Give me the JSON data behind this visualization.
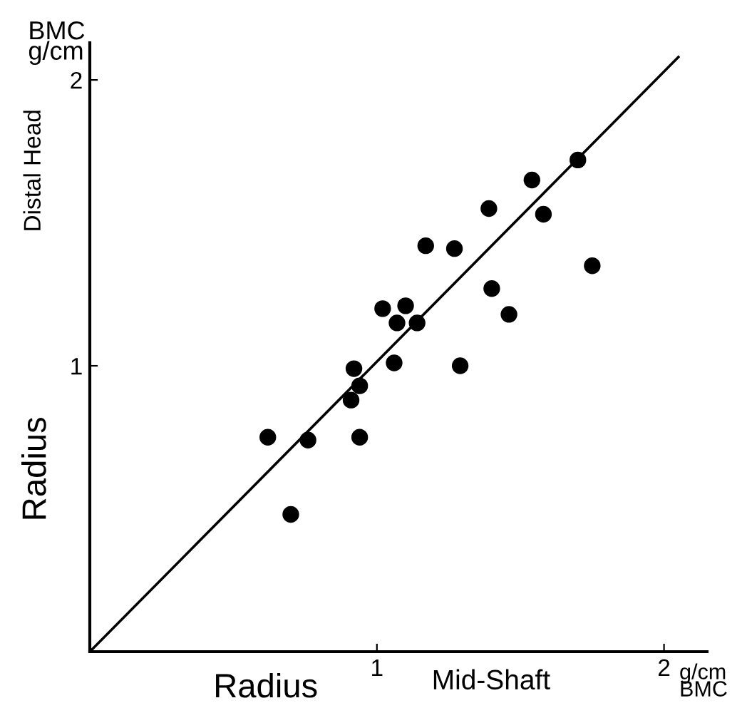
{
  "chart_data": {
    "type": "scatter",
    "xlabel": "Radius",
    "ylabel": "Radius",
    "annotations": [
      "Mid-Shaft",
      "Distal Head",
      "BMC\ng/cm",
      "g/cm\nBMC"
    ],
    "xlim": [
      0,
      2.15
    ],
    "ylim": [
      0,
      2.13
    ],
    "xticks": [
      1,
      2
    ],
    "yticks": [
      1,
      2
    ],
    "grid": false,
    "legend": false,
    "marker": "circle",
    "series": [
      {
        "color": "#000000",
        "x": [
          0.62,
          0.76,
          0.7,
          0.94,
          0.91,
          0.94,
          0.92,
          1.06,
          1.02,
          1.1,
          1.07,
          1.14,
          1.17,
          1.27,
          1.29,
          1.4,
          1.46,
          1.39,
          1.54,
          1.58,
          1.7,
          1.75
        ],
        "values": [
          0.75,
          0.74,
          0.48,
          0.75,
          0.88,
          0.93,
          0.99,
          1.01,
          1.2,
          1.21,
          1.15,
          1.15,
          1.42,
          1.41,
          1.0,
          1.27,
          1.18,
          1.55,
          1.65,
          1.53,
          1.72,
          1.35
        ]
      },
      {
        "type": "line",
        "marker": "none",
        "color": "#000000",
        "x": [
          0,
          2.05
        ],
        "values": [
          0,
          2.08
        ]
      }
    ]
  }
}
